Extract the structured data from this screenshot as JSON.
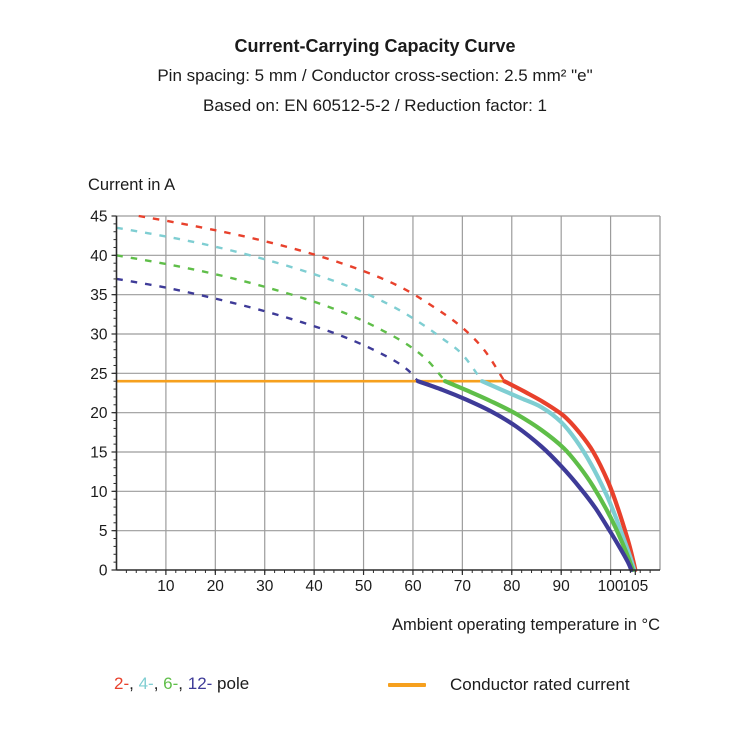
{
  "header": {
    "title": "Current-Carrying Capacity Curve",
    "subtitle1": "Pin spacing: 5 mm / Conductor cross-section: 2.5 mm² \"e\"",
    "subtitle2": "Based on: EN 60512-5-2 / Reduction factor: 1"
  },
  "chart_data": {
    "type": "line",
    "title": "Current-Carrying Capacity Curve",
    "subtitle1": "Pin spacing: 5 mm / Conductor cross-section: 2.5 mm² \"e\"",
    "subtitle2": "Based on: EN 60512-5-2 / Reduction factor: 1",
    "xlabel": "Ambient operating temperature in °C",
    "ylabel": "Current in A",
    "xlim": [
      0,
      110
    ],
    "ylim": [
      0,
      45
    ],
    "grid": true,
    "x_grid": [
      10,
      20,
      30,
      40,
      50,
      60,
      70,
      80,
      90,
      100
    ],
    "y_grid": [
      5,
      10,
      15,
      20,
      25,
      30,
      35,
      40
    ],
    "x_tick_labels": [
      10,
      20,
      30,
      40,
      50,
      60,
      70,
      80,
      90,
      100,
      105
    ],
    "y_tick_labels": [
      0,
      5,
      10,
      15,
      20,
      25,
      30,
      35,
      40,
      45
    ],
    "x_minor_step": 2,
    "y_minor_step": 1,
    "colors": {
      "grid": "#9c9c9c",
      "axis": "#2b2b2b",
      "text": "#1b1b1b"
    },
    "rated_current": {
      "value": 24,
      "x_start": 0,
      "x_end": 78.5,
      "color": "#F6A01E",
      "label": "Conductor rated current"
    },
    "series": [
      {
        "name": "2-pole",
        "legend_label": "2-",
        "color": "#E8412C",
        "dashed_points": [
          [
            4.5,
            45
          ],
          [
            10,
            44.4
          ],
          [
            20,
            43.2
          ],
          [
            30,
            41.8
          ],
          [
            40,
            40.1
          ],
          [
            50,
            38.0
          ],
          [
            58,
            35.8
          ],
          [
            65,
            33.1
          ],
          [
            70,
            30.8
          ],
          [
            74.5,
            27.9
          ],
          [
            78.5,
            24
          ]
        ],
        "solid_points": [
          [
            78.5,
            24
          ],
          [
            82.5,
            22.7
          ],
          [
            86.5,
            21.3
          ],
          [
            90.5,
            19.6
          ],
          [
            93.5,
            17.6
          ],
          [
            96.5,
            15.0
          ],
          [
            99.5,
            11.2
          ],
          [
            101.5,
            7.8
          ],
          [
            103.5,
            3.8
          ],
          [
            104.5,
            1.4
          ],
          [
            105,
            0
          ]
        ]
      },
      {
        "name": "4-pole",
        "legend_label": "4-",
        "color": "#7FCED2",
        "dashed_points": [
          [
            0,
            43.5
          ],
          [
            10,
            42.4
          ],
          [
            20,
            41.1
          ],
          [
            30,
            39.5
          ],
          [
            40,
            37.6
          ],
          [
            48,
            35.8
          ],
          [
            55,
            33.8
          ],
          [
            61,
            31.6
          ],
          [
            66,
            29.4
          ],
          [
            70,
            27.4
          ],
          [
            74,
            24
          ]
        ],
        "solid_points": [
          [
            74,
            24
          ],
          [
            78,
            22.9
          ],
          [
            82,
            21.8
          ],
          [
            86,
            20.7
          ],
          [
            90,
            18.8
          ],
          [
            93,
            16.5
          ],
          [
            96,
            13.5
          ],
          [
            99,
            9.8
          ],
          [
            101,
            6.8
          ],
          [
            103,
            3.4
          ],
          [
            104,
            1.6
          ],
          [
            104.8,
            0
          ]
        ]
      },
      {
        "name": "6-pole",
        "legend_label": "6-",
        "color": "#5FBE49",
        "dashed_points": [
          [
            0,
            40
          ],
          [
            10,
            38.9
          ],
          [
            20,
            37.6
          ],
          [
            30,
            36.0
          ],
          [
            40,
            34.1
          ],
          [
            48,
            32.2
          ],
          [
            54,
            30.4
          ],
          [
            59,
            28.6
          ],
          [
            63,
            26.6
          ],
          [
            66.5,
            24
          ]
        ],
        "solid_points": [
          [
            66.5,
            24
          ],
          [
            71,
            22.8
          ],
          [
            76,
            21.4
          ],
          [
            81,
            19.8
          ],
          [
            86,
            17.8
          ],
          [
            90.5,
            15.5
          ],
          [
            93.5,
            13.3
          ],
          [
            96.5,
            10.6
          ],
          [
            99.5,
            7.3
          ],
          [
            101.5,
            4.7
          ],
          [
            103.2,
            2.2
          ],
          [
            104.5,
            0
          ]
        ]
      },
      {
        "name": "12-pole",
        "legend_label": "12-",
        "color": "#3E3B98",
        "dashed_points": [
          [
            0,
            37
          ],
          [
            10,
            35.9
          ],
          [
            20,
            34.5
          ],
          [
            30,
            32.9
          ],
          [
            38,
            31.4
          ],
          [
            45,
            29.9
          ],
          [
            51,
            28.3
          ],
          [
            56,
            26.7
          ],
          [
            59,
            25.4
          ],
          [
            61,
            24
          ]
        ],
        "solid_points": [
          [
            61,
            24
          ],
          [
            66,
            22.9
          ],
          [
            71,
            21.6
          ],
          [
            76,
            20.1
          ],
          [
            81,
            18.2
          ],
          [
            86,
            15.7
          ],
          [
            90,
            13.2
          ],
          [
            94,
            10.3
          ],
          [
            97,
            7.8
          ],
          [
            100,
            4.8
          ],
          [
            102,
            2.7
          ],
          [
            103.5,
            1.0
          ],
          [
            104.2,
            0
          ]
        ]
      }
    ],
    "legend": {
      "pole_parts": [
        {
          "text": "2-",
          "color": "#E8412C"
        },
        {
          "text": ", ",
          "color": "#1b1b1b"
        },
        {
          "text": "4-",
          "color": "#7FCED2"
        },
        {
          "text": ", ",
          "color": "#1b1b1b"
        },
        {
          "text": "6-",
          "color": "#5FBE49"
        },
        {
          "text": ", ",
          "color": "#1b1b1b"
        },
        {
          "text": "12-",
          "color": "#3E3B98"
        },
        {
          "text": " pole",
          "color": "#1b1b1b"
        }
      ],
      "rated_label": "Conductor rated current"
    }
  }
}
